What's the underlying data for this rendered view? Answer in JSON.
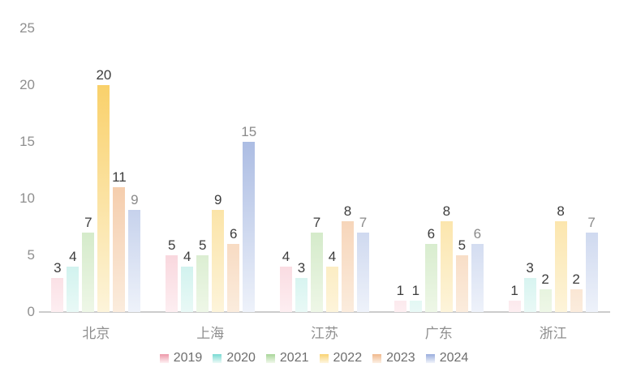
{
  "chart_data": {
    "type": "bar",
    "title": "",
    "xlabel": "",
    "ylabel": "",
    "categories": [
      "北京",
      "上海",
      "江苏",
      "广东",
      "浙江"
    ],
    "series": [
      {
        "name": "2019",
        "values": [
          3,
          5,
          4,
          1,
          1
        ],
        "color_top": "#e87e93",
        "color_bottom": "#fdeef1",
        "label_color": "#3d3d3d"
      },
      {
        "name": "2020",
        "values": [
          4,
          4,
          3,
          1,
          3
        ],
        "color_top": "#57d0c7",
        "color_bottom": "#e9f9f6",
        "label_color": "#3d3d3d"
      },
      {
        "name": "2021",
        "values": [
          7,
          5,
          7,
          6,
          2
        ],
        "color_top": "#93cb80",
        "color_bottom": "#eef7e7",
        "label_color": "#3d3d3d"
      },
      {
        "name": "2022",
        "values": [
          20,
          9,
          4,
          8,
          8
        ],
        "color_top": "#f8c84f",
        "color_bottom": "#fdf4da",
        "label_color": "#3d3d3d"
      },
      {
        "name": "2023",
        "values": [
          11,
          6,
          8,
          5,
          2
        ],
        "color_top": "#eda670",
        "color_bottom": "#fbecdd",
        "label_color": "#3d3d3d"
      },
      {
        "name": "2024",
        "values": [
          9,
          15,
          7,
          6,
          7
        ],
        "color_top": "#8099d4",
        "color_bottom": "#eef2fa",
        "label_color": "#8a8a8a"
      }
    ],
    "ylim": [
      0,
      25
    ],
    "yticks": [
      0,
      5,
      10,
      15,
      20,
      25
    ],
    "grid": false,
    "legend_position": "bottom",
    "axis_line_color": "#cccccc",
    "tick_label_color": "#8f8f8f",
    "category_label_color": "#8f8f8f",
    "legend_text_color": "#6e6e6e",
    "background_color": "#ffffff"
  }
}
